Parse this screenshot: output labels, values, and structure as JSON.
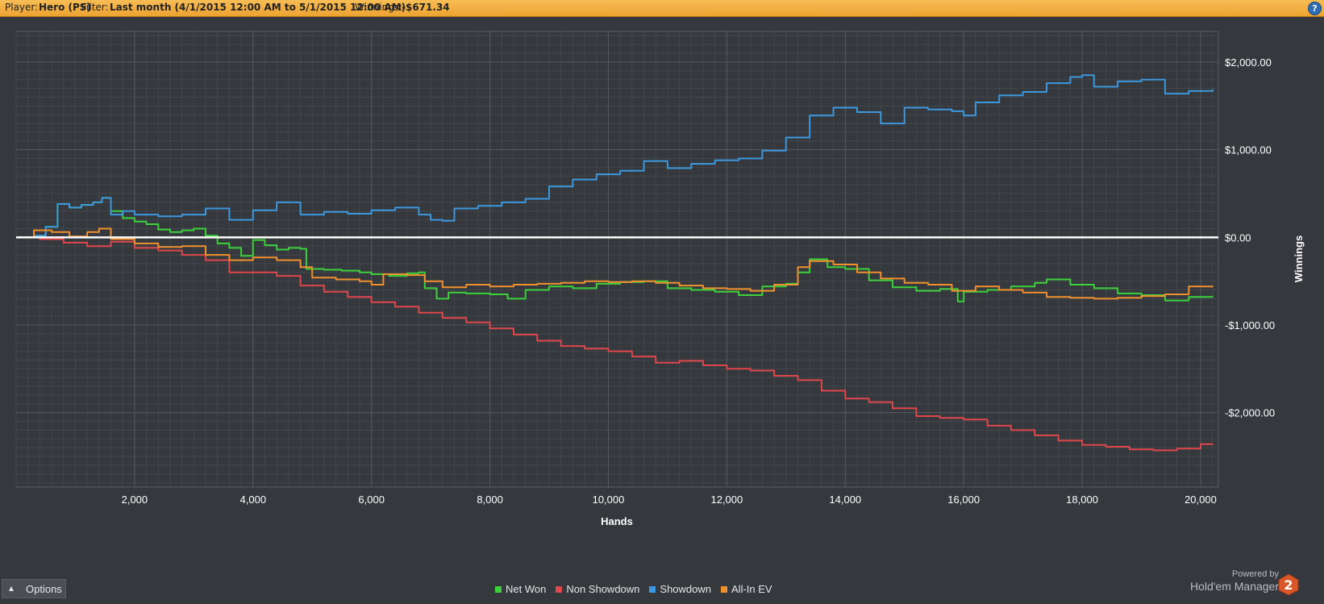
{
  "header": {
    "player_label": "Player:",
    "player_value": "Hero (PS)",
    "filter_label": "Filter:",
    "filter_value": "Last month (4/1/2015 12:00 AM to 5/1/2015 12:00 AM)",
    "winnings_label": "Winnings:",
    "winnings_value": "-$671.34",
    "help_icon": "help-icon",
    "help_glyph": "?"
  },
  "footer": {
    "options_label": "Options",
    "powered_by": "Powered by",
    "brand": "Hold'em Manager",
    "brand_badge": "2"
  },
  "colors": {
    "net_won": "#3bd23b",
    "non_showdown": "#e0474c",
    "showdown": "#3c98df",
    "all_in_ev": "#f0912e",
    "zero_line": "#ffffff",
    "grid": "#55595f",
    "header_bg": "#f0a83a"
  },
  "chart_data": {
    "type": "line",
    "xlabel": "Hands",
    "ylabel": "Winnings",
    "xlim": [
      0,
      20300
    ],
    "ylim": [
      -2850,
      2350
    ],
    "x_ticks": [
      2000,
      4000,
      6000,
      8000,
      10000,
      12000,
      14000,
      16000,
      18000,
      20000
    ],
    "x_tick_labels": [
      "2,000",
      "4,000",
      "6,000",
      "8,000",
      "10,000",
      "12,000",
      "14,000",
      "16,000",
      "18,000",
      "20,000"
    ],
    "y_ticks": [
      2000,
      1000,
      0,
      -1000,
      -2000
    ],
    "y_tick_labels": [
      "$2,000.00",
      "$1,000.00",
      "$0.00",
      "-$1,000.00",
      "-$2,000.00"
    ],
    "grid": true,
    "legend_position": "bottom",
    "zero_line": true,
    "series": [
      {
        "name": "Net Won",
        "color": "#3bd23b",
        "points": [
          [
            0,
            0
          ],
          [
            300,
            20
          ],
          [
            500,
            120
          ],
          [
            700,
            380
          ],
          [
            900,
            340
          ],
          [
            1100,
            370
          ],
          [
            1300,
            400
          ],
          [
            1450,
            450
          ],
          [
            1600,
            300
          ],
          [
            1800,
            220
          ],
          [
            2000,
            180
          ],
          [
            2200,
            150
          ],
          [
            2400,
            90
          ],
          [
            2600,
            60
          ],
          [
            2800,
            80
          ],
          [
            3000,
            100
          ],
          [
            3200,
            20
          ],
          [
            3400,
            -70
          ],
          [
            3600,
            -120
          ],
          [
            3800,
            -210
          ],
          [
            4000,
            -30
          ],
          [
            4200,
            -90
          ],
          [
            4400,
            -140
          ],
          [
            4600,
            -120
          ],
          [
            4800,
            -130
          ],
          [
            4900,
            -360
          ],
          [
            5200,
            -370
          ],
          [
            5500,
            -380
          ],
          [
            5800,
            -400
          ],
          [
            6000,
            -420
          ],
          [
            6300,
            -440
          ],
          [
            6600,
            -410
          ],
          [
            6800,
            -400
          ],
          [
            6900,
            -580
          ],
          [
            7100,
            -700
          ],
          [
            7300,
            -630
          ],
          [
            7600,
            -640
          ],
          [
            8000,
            -650
          ],
          [
            8300,
            -700
          ],
          [
            8600,
            -600
          ],
          [
            9000,
            -560
          ],
          [
            9400,
            -580
          ],
          [
            9800,
            -530
          ],
          [
            10200,
            -510
          ],
          [
            10600,
            -500
          ],
          [
            11000,
            -580
          ],
          [
            11400,
            -600
          ],
          [
            11800,
            -620
          ],
          [
            12200,
            -660
          ],
          [
            12600,
            -560
          ],
          [
            13000,
            -530
          ],
          [
            13200,
            -400
          ],
          [
            13400,
            -250
          ],
          [
            13700,
            -340
          ],
          [
            14000,
            -360
          ],
          [
            14400,
            -490
          ],
          [
            14800,
            -570
          ],
          [
            15200,
            -610
          ],
          [
            15600,
            -590
          ],
          [
            15900,
            -730
          ],
          [
            16000,
            -620
          ],
          [
            16400,
            -600
          ],
          [
            16800,
            -560
          ],
          [
            17200,
            -520
          ],
          [
            17400,
            -480
          ],
          [
            17800,
            -540
          ],
          [
            18200,
            -580
          ],
          [
            18600,
            -640
          ],
          [
            19000,
            -660
          ],
          [
            19400,
            -720
          ],
          [
            19800,
            -680
          ],
          [
            20200,
            -670
          ]
        ]
      },
      {
        "name": "Non Showdown",
        "color": "#e0474c",
        "points": [
          [
            0,
            0
          ],
          [
            400,
            -20
          ],
          [
            800,
            -60
          ],
          [
            1200,
            -100
          ],
          [
            1600,
            -50
          ],
          [
            2000,
            -120
          ],
          [
            2400,
            -150
          ],
          [
            2800,
            -200
          ],
          [
            3200,
            -260
          ],
          [
            3600,
            -400
          ],
          [
            4000,
            -400
          ],
          [
            4400,
            -440
          ],
          [
            4800,
            -550
          ],
          [
            5200,
            -620
          ],
          [
            5600,
            -680
          ],
          [
            6000,
            -740
          ],
          [
            6400,
            -790
          ],
          [
            6800,
            -860
          ],
          [
            7200,
            -920
          ],
          [
            7600,
            -970
          ],
          [
            8000,
            -1040
          ],
          [
            8400,
            -1110
          ],
          [
            8800,
            -1180
          ],
          [
            9200,
            -1240
          ],
          [
            9600,
            -1270
          ],
          [
            10000,
            -1300
          ],
          [
            10400,
            -1360
          ],
          [
            10800,
            -1430
          ],
          [
            11200,
            -1410
          ],
          [
            11600,
            -1460
          ],
          [
            12000,
            -1500
          ],
          [
            12400,
            -1520
          ],
          [
            12800,
            -1580
          ],
          [
            13200,
            -1630
          ],
          [
            13600,
            -1750
          ],
          [
            14000,
            -1840
          ],
          [
            14400,
            -1880
          ],
          [
            14800,
            -1950
          ],
          [
            15200,
            -2040
          ],
          [
            15600,
            -2060
          ],
          [
            16000,
            -2080
          ],
          [
            16400,
            -2150
          ],
          [
            16800,
            -2200
          ],
          [
            17200,
            -2260
          ],
          [
            17600,
            -2320
          ],
          [
            18000,
            -2370
          ],
          [
            18400,
            -2390
          ],
          [
            18800,
            -2420
          ],
          [
            19200,
            -2430
          ],
          [
            19600,
            -2410
          ],
          [
            20000,
            -2360
          ],
          [
            20200,
            -2370
          ]
        ]
      },
      {
        "name": "Showdown",
        "color": "#3c98df",
        "points": [
          [
            0,
            0
          ],
          [
            300,
            20
          ],
          [
            500,
            120
          ],
          [
            700,
            380
          ],
          [
            900,
            340
          ],
          [
            1100,
            370
          ],
          [
            1300,
            400
          ],
          [
            1450,
            450
          ],
          [
            1600,
            260
          ],
          [
            1800,
            300
          ],
          [
            2000,
            260
          ],
          [
            2400,
            240
          ],
          [
            2800,
            260
          ],
          [
            3200,
            330
          ],
          [
            3600,
            200
          ],
          [
            4000,
            310
          ],
          [
            4400,
            400
          ],
          [
            4800,
            260
          ],
          [
            5200,
            290
          ],
          [
            5600,
            270
          ],
          [
            6000,
            310
          ],
          [
            6400,
            340
          ],
          [
            6800,
            260
          ],
          [
            7000,
            200
          ],
          [
            7200,
            190
          ],
          [
            7400,
            330
          ],
          [
            7800,
            360
          ],
          [
            8200,
            400
          ],
          [
            8600,
            440
          ],
          [
            9000,
            580
          ],
          [
            9400,
            660
          ],
          [
            9800,
            720
          ],
          [
            10200,
            760
          ],
          [
            10600,
            870
          ],
          [
            11000,
            790
          ],
          [
            11400,
            840
          ],
          [
            11800,
            880
          ],
          [
            12200,
            900
          ],
          [
            12600,
            990
          ],
          [
            13000,
            1140
          ],
          [
            13400,
            1390
          ],
          [
            13800,
            1480
          ],
          [
            14200,
            1430
          ],
          [
            14600,
            1300
          ],
          [
            15000,
            1480
          ],
          [
            15400,
            1460
          ],
          [
            15800,
            1440
          ],
          [
            16000,
            1390
          ],
          [
            16200,
            1540
          ],
          [
            16600,
            1620
          ],
          [
            17000,
            1660
          ],
          [
            17400,
            1760
          ],
          [
            17800,
            1830
          ],
          [
            18000,
            1850
          ],
          [
            18200,
            1720
          ],
          [
            18600,
            1780
          ],
          [
            19000,
            1800
          ],
          [
            19400,
            1640
          ],
          [
            19800,
            1670
          ],
          [
            20200,
            1690
          ]
        ]
      },
      {
        "name": "All-In EV",
        "color": "#f0912e",
        "points": [
          [
            0,
            0
          ],
          [
            300,
            80
          ],
          [
            600,
            60
          ],
          [
            900,
            10
          ],
          [
            1200,
            60
          ],
          [
            1400,
            100
          ],
          [
            1600,
            -20
          ],
          [
            2000,
            -70
          ],
          [
            2400,
            -110
          ],
          [
            2800,
            -100
          ],
          [
            3200,
            -200
          ],
          [
            3600,
            -260
          ],
          [
            4000,
            -230
          ],
          [
            4400,
            -260
          ],
          [
            4800,
            -340
          ],
          [
            5000,
            -460
          ],
          [
            5400,
            -480
          ],
          [
            5800,
            -500
          ],
          [
            6000,
            -540
          ],
          [
            6200,
            -420
          ],
          [
            6600,
            -430
          ],
          [
            6900,
            -500
          ],
          [
            7200,
            -570
          ],
          [
            7600,
            -540
          ],
          [
            8000,
            -560
          ],
          [
            8400,
            -540
          ],
          [
            8800,
            -530
          ],
          [
            9200,
            -520
          ],
          [
            9600,
            -500
          ],
          [
            10000,
            -510
          ],
          [
            10400,
            -500
          ],
          [
            10800,
            -520
          ],
          [
            11200,
            -550
          ],
          [
            11600,
            -580
          ],
          [
            12000,
            -590
          ],
          [
            12400,
            -610
          ],
          [
            12800,
            -540
          ],
          [
            13200,
            -340
          ],
          [
            13400,
            -270
          ],
          [
            13800,
            -310
          ],
          [
            14200,
            -400
          ],
          [
            14600,
            -470
          ],
          [
            15000,
            -520
          ],
          [
            15400,
            -540
          ],
          [
            15800,
            -610
          ],
          [
            16200,
            -560
          ],
          [
            16600,
            -600
          ],
          [
            17000,
            -630
          ],
          [
            17400,
            -680
          ],
          [
            17800,
            -690
          ],
          [
            18200,
            -700
          ],
          [
            18600,
            -690
          ],
          [
            19000,
            -670
          ],
          [
            19400,
            -650
          ],
          [
            19800,
            -560
          ],
          [
            20200,
            -570
          ]
        ]
      }
    ]
  }
}
